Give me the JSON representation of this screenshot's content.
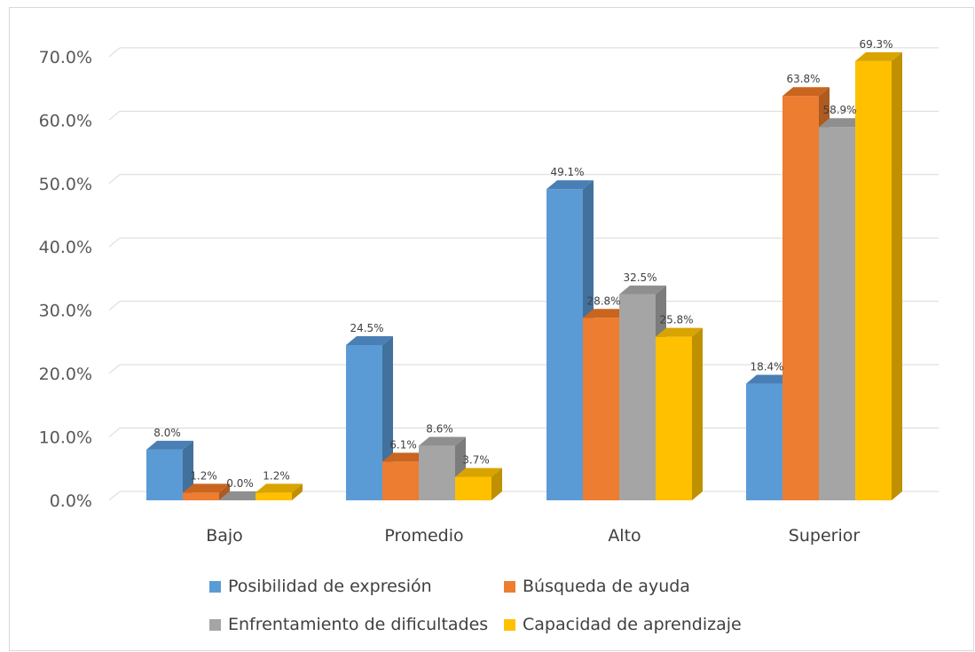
{
  "chart_data": {
    "type": "bar",
    "categories": [
      "Bajo",
      "Promedio",
      "Alto",
      "Superior"
    ],
    "series": [
      {
        "name": "Posibilidad de expresión",
        "values": [
          8.0,
          24.5,
          49.1,
          18.4
        ],
        "labels": [
          "8.0%",
          "24.5%",
          "49.1%",
          "18.4%"
        ]
      },
      {
        "name": "Búsqueda de ayuda",
        "values": [
          1.2,
          6.1,
          28.8,
          63.8
        ],
        "labels": [
          "1.2%",
          "6.1%",
          "28.8%",
          "63.8%"
        ]
      },
      {
        "name": "Enfrentamiento de dificultades",
        "values": [
          0.0,
          8.6,
          32.5,
          58.9
        ],
        "labels": [
          "0.0%",
          "8.6%",
          "32.5%",
          "58.9%"
        ]
      },
      {
        "name": "Capacidad de aprendizaje",
        "values": [
          1.2,
          3.7,
          25.8,
          69.3
        ],
        "labels": [
          "1.2%",
          "3.7%",
          "25.8%",
          "69.3%"
        ]
      }
    ],
    "yticks": [
      "0.0%",
      "10.0%",
      "20.0%",
      "30.0%",
      "40.0%",
      "50.0%",
      "60.0%",
      "70.0%"
    ],
    "ylim": [
      0,
      70
    ],
    "grid": true,
    "legend_position": "bottom",
    "style": "3d-clustered-column",
    "colors": [
      "#5B9BD5",
      "#ED7D31",
      "#A5A5A5",
      "#FFC000"
    ],
    "side_colors": [
      "#41719C",
      "#AE5A21",
      "#7C7C7C",
      "#BF9000"
    ],
    "top_colors": [
      "#4A7FB5",
      "#C9651F",
      "#8F8F8F",
      "#D9A300"
    ]
  }
}
